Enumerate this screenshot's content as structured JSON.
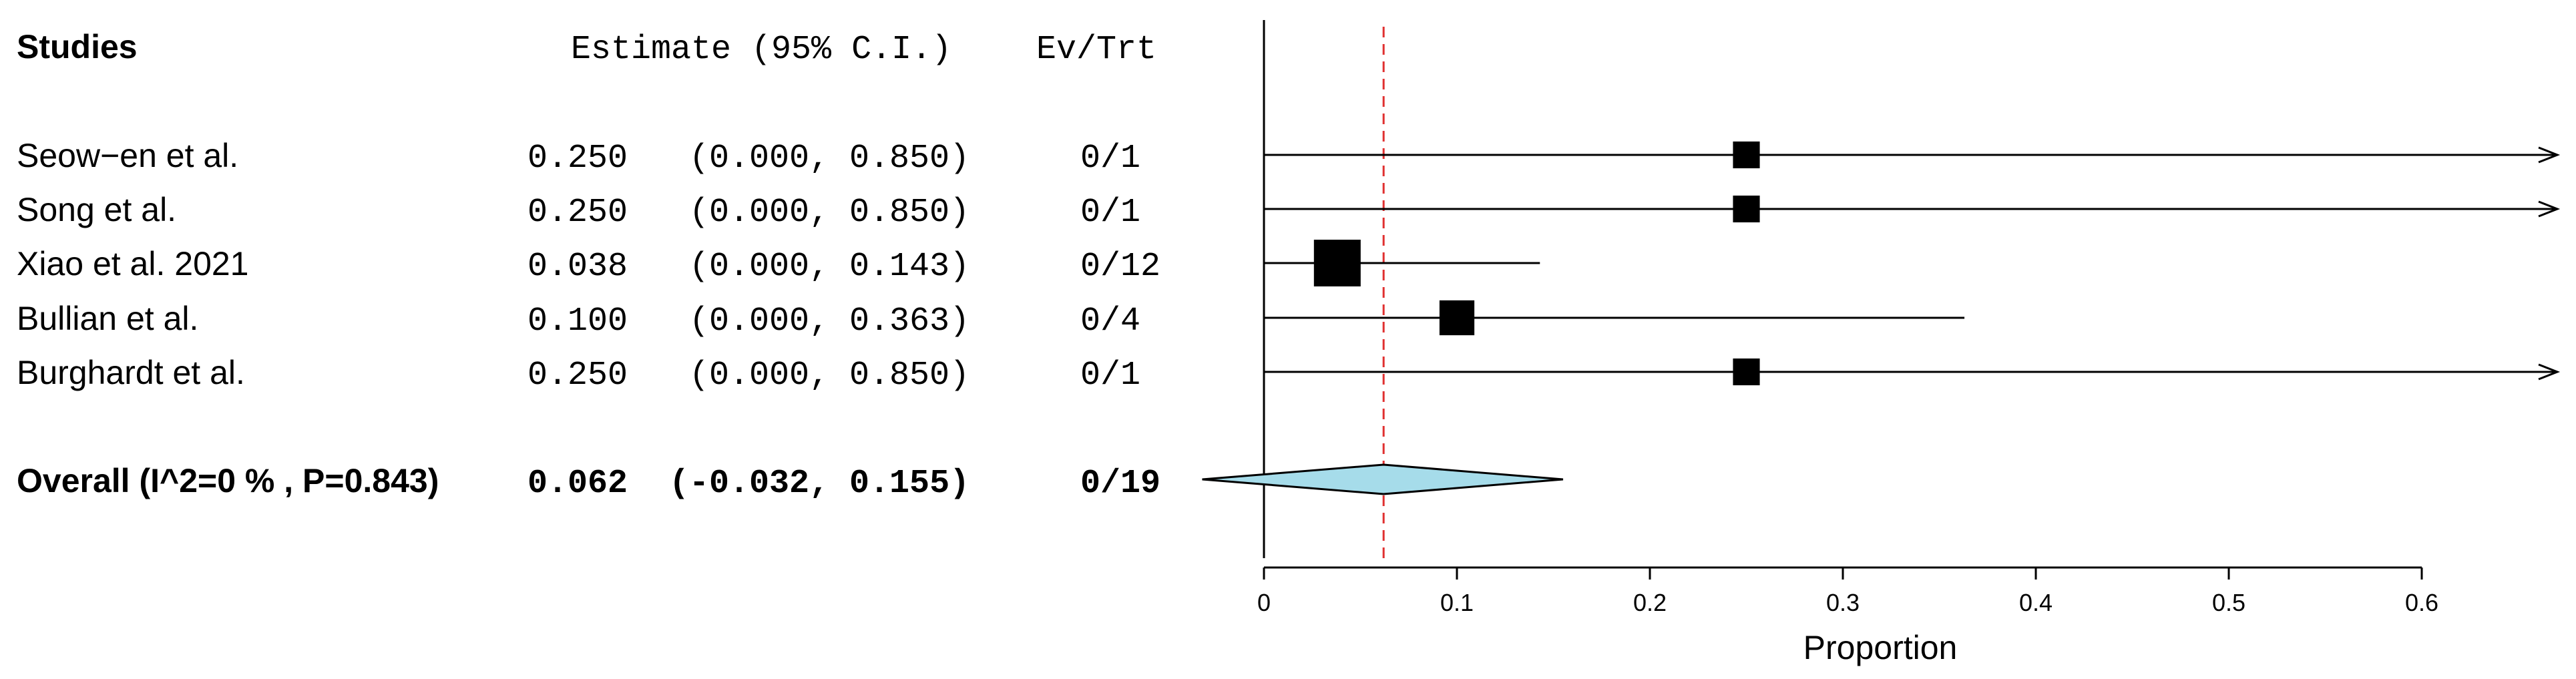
{
  "chart_data": {
    "type": "forest",
    "headers": {
      "studies": "Studies",
      "estimate": "Estimate (95% C.I.)",
      "events": "Ev/Trt"
    },
    "studies": [
      {
        "label": "Seow−en et al.",
        "estimate": 0.25,
        "lower": 0.0,
        "upper": 0.85,
        "estimate_text": "0.250",
        "ci_text": "(0.000, 0.850)",
        "events_text": "0/1",
        "weight": 1
      },
      {
        "label": "Song et al.",
        "estimate": 0.25,
        "lower": 0.0,
        "upper": 0.85,
        "estimate_text": "0.250",
        "ci_text": "(0.000, 0.850)",
        "events_text": "0/1",
        "weight": 1
      },
      {
        "label": "Xiao et al. 2021",
        "estimate": 0.038,
        "lower": 0.0,
        "upper": 0.143,
        "estimate_text": "0.038",
        "ci_text": "(0.000, 0.143)",
        "events_text": "0/12",
        "weight": 12
      },
      {
        "label": "Bullian et al.",
        "estimate": 0.1,
        "lower": 0.0,
        "upper": 0.363,
        "estimate_text": "0.100",
        "ci_text": "(0.000, 0.363)",
        "events_text": "0/4",
        "weight": 4
      },
      {
        "label": "Burghardt et al.",
        "estimate": 0.25,
        "lower": 0.0,
        "upper": 0.85,
        "estimate_text": "0.250",
        "ci_text": "(0.000, 0.850)",
        "events_text": "0/1",
        "weight": 1
      }
    ],
    "overall": {
      "label": "Overall (I^2=0 % , P=0.843)",
      "estimate": 0.062,
      "lower": -0.032,
      "upper": 0.155,
      "estimate_text": "0.062",
      "ci_text": "(-0.032, 0.155)",
      "events_text": "0/19"
    },
    "x_axis": {
      "label": "Proportion",
      "ticks": [
        0,
        0.1,
        0.2,
        0.3,
        0.4,
        0.5,
        0.6
      ],
      "tick_labels": [
        "0",
        "0.1",
        "0.2",
        "0.3",
        "0.4",
        "0.5",
        "0.6"
      ],
      "range": [
        -0.032,
        0.67
      ]
    },
    "reference_line": {
      "value": 0.062,
      "style": "dashed"
    },
    "colors": {
      "text": "#000000",
      "marker": "#000000",
      "diamond_fill": "#a6dcea",
      "reference_line": "#e03030"
    }
  }
}
